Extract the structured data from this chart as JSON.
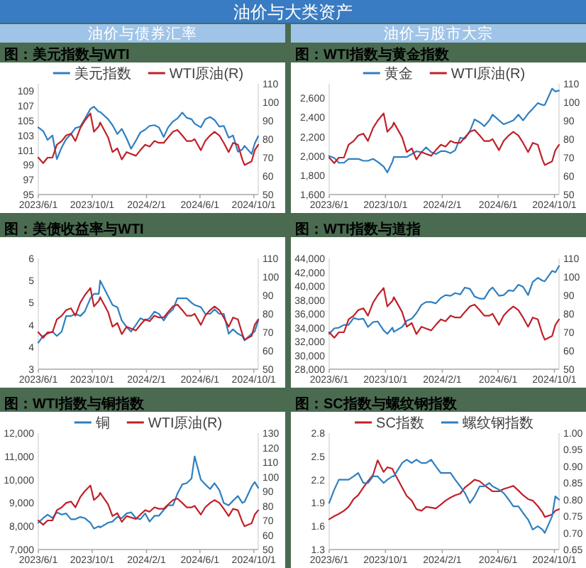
{
  "chart_data": [
    {
      "type": "line",
      "title": "图：美元指数与WTI",
      "subtitle": "油价与债券汇率",
      "annotations": [
        "油价与大类资产"
      ],
      "legend": "top",
      "x": [
        "2023-06-01",
        "2023-06-12",
        "2023-06-22",
        "2023-07-03",
        "2023-07-13",
        "2023-07-24",
        "2023-08-03",
        "2023-08-14",
        "2023-08-24",
        "2023-09-04",
        "2023-09-14",
        "2023-09-27",
        "2023-10-05",
        "2023-10-16",
        "2023-10-19",
        "2023-11-06",
        "2023-11-16",
        "2023-11-27",
        "2023-12-07",
        "2023-12-18",
        "2023-12-28",
        "2024-01-08",
        "2024-01-18",
        "2024-01-29",
        "2024-02-08",
        "2024-02-19",
        "2024-02-29",
        "2024-03-11",
        "2024-03-21",
        "2024-04-01",
        "2024-04-11",
        "2024-04-22",
        "2024-05-02",
        "2024-05-13",
        "2024-05-20",
        "2024-06-03",
        "2024-06-13",
        "2024-06-24",
        "2024-07-04",
        "2024-07-15",
        "2024-07-25",
        "2024-08-05",
        "2024-08-15",
        "2024-08-26",
        "2024-09-05",
        "2024-09-10",
        "2024-09-26",
        "2024-10-03",
        "2024-10-11"
      ],
      "series": [
        {
          "name": "美元指数",
          "color": "#2e7fc1",
          "values": [
            104.1,
            103.6,
            102.4,
            103.0,
            99.8,
            101.4,
            102.5,
            103.2,
            104.0,
            104.2,
            105.2,
            106.6,
            106.9,
            106.2,
            106.2,
            105.2,
            104.4,
            103.2,
            103.9,
            102.6,
            101.2,
            102.3,
            103.4,
            103.8,
            104.3,
            104.4,
            104.1,
            102.8,
            104.1,
            104.9,
            105.3,
            106.1,
            105.4,
            105.2,
            104.6,
            104.1,
            105.2,
            105.5,
            105.1,
            104.2,
            104.3,
            102.7,
            103.0,
            100.8,
            101.1,
            101.6,
            100.5,
            101.9,
            102.9
          ]
        },
        {
          "name": "WTI原油(R)",
          "color": "#c0202a",
          "axis": "y2",
          "values": [
            70,
            67,
            70,
            70,
            77,
            79,
            82,
            83,
            79,
            86,
            90,
            94,
            84,
            87,
            89,
            81,
            73,
            75,
            69,
            73,
            72,
            71,
            74,
            77,
            76,
            79,
            78,
            78,
            81,
            84,
            85,
            82,
            79,
            79,
            80,
            74,
            79,
            82,
            84,
            82,
            78,
            73,
            78,
            77,
            69,
            66,
            68,
            74,
            77
          ]
        }
      ],
      "xlim": [
        "2023-06-01",
        "2024-10-11"
      ],
      "xticks": [
        {
          "value": "2023-06-01",
          "label": "2023/6/1"
        },
        {
          "value": "2023-10-01",
          "label": "2023/10/1"
        },
        {
          "value": "2024-02-01",
          "label": "2024/2/1"
        },
        {
          "value": "2024-06-01",
          "label": "2024/6/1"
        },
        {
          "value": "2024-10-01",
          "label": "2024/10/1"
        }
      ],
      "ylim": [
        95,
        110
      ],
      "yticks": [
        95,
        97,
        99,
        101,
        103,
        105,
        107,
        109
      ],
      "y2lim": [
        50,
        110
      ],
      "y2ticks": [
        50,
        60,
        70,
        80,
        90,
        100,
        110
      ]
    },
    {
      "type": "line",
      "title": "图：WTI指数与黄金指数",
      "subtitle": "油价与股市大宗",
      "legend": "top",
      "x": [
        "2023-06-01",
        "2023-06-12",
        "2023-06-22",
        "2023-07-03",
        "2023-07-13",
        "2023-07-24",
        "2023-08-03",
        "2023-08-14",
        "2023-08-24",
        "2023-09-04",
        "2023-09-14",
        "2023-09-27",
        "2023-10-05",
        "2023-10-16",
        "2023-10-19",
        "2023-11-06",
        "2023-11-16",
        "2023-11-27",
        "2023-12-07",
        "2023-12-18",
        "2023-12-28",
        "2024-01-08",
        "2024-01-18",
        "2024-01-29",
        "2024-02-08",
        "2024-02-19",
        "2024-02-29",
        "2024-03-11",
        "2024-03-21",
        "2024-04-01",
        "2024-04-11",
        "2024-04-22",
        "2024-05-02",
        "2024-05-13",
        "2024-05-20",
        "2024-06-03",
        "2024-06-13",
        "2024-06-24",
        "2024-07-04",
        "2024-07-15",
        "2024-07-25",
        "2024-08-05",
        "2024-08-15",
        "2024-08-26",
        "2024-09-05",
        "2024-09-10",
        "2024-09-26",
        "2024-10-03",
        "2024-10-11"
      ],
      "series": [
        {
          "name": "黄金",
          "color": "#2e7fc1",
          "values": [
            2000,
            1980,
            1930,
            1930,
            1970,
            1970,
            1970,
            1950,
            1950,
            1970,
            1940,
            1890,
            1830,
            1940,
            1990,
            1990,
            1990,
            2020,
            2050,
            2040,
            2090,
            2040,
            2020,
            2050,
            2050,
            2030,
            2060,
            2190,
            2180,
            2260,
            2380,
            2350,
            2310,
            2370,
            2430,
            2370,
            2330,
            2350,
            2370,
            2430,
            2370,
            2440,
            2490,
            2550,
            2530,
            2530,
            2700,
            2670,
            2680
          ]
        },
        {
          "name": "WTI原油(R)",
          "color": "#c0202a",
          "axis": "y2",
          "values": [
            70,
            67,
            70,
            70,
            77,
            79,
            82,
            83,
            79,
            86,
            90,
            94,
            84,
            87,
            89,
            81,
            73,
            75,
            69,
            73,
            72,
            71,
            74,
            77,
            76,
            79,
            78,
            78,
            81,
            84,
            85,
            82,
            79,
            79,
            80,
            74,
            79,
            82,
            84,
            82,
            78,
            73,
            78,
            77,
            69,
            66,
            68,
            74,
            77
          ]
        }
      ],
      "xlim": [
        "2023-06-01",
        "2024-10-11"
      ],
      "xticks": [
        {
          "value": "2023-06-01",
          "label": "2023/6/1"
        },
        {
          "value": "2023-10-01",
          "label": "2023/10/1"
        },
        {
          "value": "2024-02-01",
          "label": "2024/2/1"
        },
        {
          "value": "2024-06-01",
          "label": "2024/6/1"
        },
        {
          "value": "2024-10-01",
          "label": "2024/10/1"
        }
      ],
      "ylim": [
        1600,
        2750
      ],
      "yticks": [
        {
          "value": 1600,
          "label": "1,600"
        },
        {
          "value": 1800,
          "label": "1,800"
        },
        {
          "value": 2000,
          "label": "2,000"
        },
        {
          "value": 2200,
          "label": "2,200"
        },
        {
          "value": 2400,
          "label": "2,400"
        },
        {
          "value": 2600,
          "label": "2,600"
        }
      ],
      "y2lim": [
        50,
        110
      ],
      "y2ticks": [
        50,
        60,
        70,
        80,
        90,
        100,
        110
      ]
    },
    {
      "type": "line",
      "title": "图：美债收益率与WTI",
      "x": [
        "2023-06-01",
        "2023-06-12",
        "2023-06-22",
        "2023-07-03",
        "2023-07-13",
        "2023-07-24",
        "2023-08-03",
        "2023-08-14",
        "2023-08-24",
        "2023-09-04",
        "2023-09-14",
        "2023-09-27",
        "2023-10-05",
        "2023-10-16",
        "2023-10-19",
        "2023-11-06",
        "2023-11-16",
        "2023-11-27",
        "2023-12-07",
        "2023-12-18",
        "2023-12-28",
        "2024-01-08",
        "2024-01-18",
        "2024-01-29",
        "2024-02-08",
        "2024-02-19",
        "2024-02-29",
        "2024-03-11",
        "2024-03-21",
        "2024-04-01",
        "2024-04-11",
        "2024-04-22",
        "2024-05-02",
        "2024-05-13",
        "2024-05-20",
        "2024-06-03",
        "2024-06-13",
        "2024-06-24",
        "2024-07-04",
        "2024-07-15",
        "2024-07-25",
        "2024-08-05",
        "2024-08-15",
        "2024-08-26",
        "2024-09-05",
        "2024-09-10",
        "2024-09-26",
        "2024-10-03",
        "2024-10-11"
      ],
      "series": [
        {
          "color": "#2e7fc1",
          "values": [
            3.6,
            3.75,
            3.8,
            3.85,
            3.75,
            3.85,
            4.2,
            4.2,
            4.25,
            4.2,
            4.3,
            4.6,
            4.7,
            4.7,
            5.0,
            4.65,
            4.45,
            4.4,
            4.1,
            3.95,
            3.85,
            4.0,
            4.15,
            4.1,
            4.15,
            4.3,
            4.25,
            4.1,
            4.25,
            4.35,
            4.6,
            4.6,
            4.6,
            4.5,
            4.45,
            4.4,
            4.25,
            4.25,
            4.35,
            4.25,
            4.25,
            3.8,
            3.9,
            3.8,
            3.75,
            3.65,
            3.8,
            3.85,
            4.1
          ]
        },
        {
          "color": "#c0202a",
          "axis": "y2",
          "values": [
            70,
            67,
            70,
            70,
            77,
            79,
            82,
            83,
            79,
            86,
            90,
            94,
            84,
            87,
            89,
            81,
            73,
            75,
            69,
            73,
            72,
            71,
            74,
            77,
            76,
            79,
            78,
            78,
            81,
            84,
            85,
            82,
            79,
            79,
            80,
            74,
            79,
            82,
            84,
            82,
            78,
            73,
            78,
            77,
            69,
            66,
            68,
            74,
            77
          ]
        }
      ],
      "xlim": [
        "2023-06-01",
        "2024-10-11"
      ],
      "xticks": [
        {
          "value": "2023-06-01",
          "label": "2023/6/1"
        },
        {
          "value": "2023-10-01",
          "label": "2023/10/1"
        },
        {
          "value": "2024-02-01",
          "label": "2024/2/1"
        },
        {
          "value": "2024-06-01",
          "label": "2024/6/1"
        },
        {
          "value": "2024-10-01",
          "label": "2024/10/1"
        }
      ],
      "ylim": [
        3,
        5.5
      ],
      "yticks": [
        3,
        {
          "value": 3.5,
          "label": "4"
        },
        4,
        {
          "value": 4.5,
          "label": "5"
        },
        5,
        {
          "value": 5.5,
          "label": "6"
        }
      ],
      "y2lim": [
        50,
        110
      ],
      "y2ticks": [
        50,
        60,
        70,
        80,
        90,
        100,
        110
      ]
    },
    {
      "type": "line",
      "title": "图：WTI指数与道指",
      "x": [
        "2023-06-01",
        "2023-06-12",
        "2023-06-22",
        "2023-07-03",
        "2023-07-13",
        "2023-07-24",
        "2023-08-03",
        "2023-08-14",
        "2023-08-24",
        "2023-09-04",
        "2023-09-14",
        "2023-09-27",
        "2023-10-05",
        "2023-10-16",
        "2023-10-19",
        "2023-11-06",
        "2023-11-16",
        "2023-11-27",
        "2023-12-07",
        "2023-12-18",
        "2023-12-28",
        "2024-01-08",
        "2024-01-18",
        "2024-01-29",
        "2024-02-08",
        "2024-02-19",
        "2024-02-29",
        "2024-03-11",
        "2024-03-21",
        "2024-04-01",
        "2024-04-11",
        "2024-04-22",
        "2024-05-02",
        "2024-05-13",
        "2024-05-20",
        "2024-06-03",
        "2024-06-13",
        "2024-06-24",
        "2024-07-04",
        "2024-07-15",
        "2024-07-25",
        "2024-08-05",
        "2024-08-15",
        "2024-08-26",
        "2024-09-05",
        "2024-09-10",
        "2024-09-26",
        "2024-10-03",
        "2024-10-11"
      ],
      "series": [
        {
          "color": "#2e7fc1",
          "values": [
            33100,
            33900,
            34000,
            34400,
            34400,
            35400,
            35200,
            35300,
            34100,
            34800,
            34900,
            33600,
            33100,
            34000,
            33400,
            34100,
            35000,
            35300,
            36100,
            37300,
            37700,
            37700,
            37500,
            38300,
            38700,
            38600,
            39000,
            38800,
            39800,
            39600,
            38500,
            38200,
            38200,
            39400,
            39800,
            38600,
            38700,
            39400,
            39300,
            40200,
            39900,
            38700,
            40600,
            41200,
            40800,
            40700,
            42200,
            42000,
            42900
          ]
        },
        {
          "color": "#c0202a",
          "axis": "y2",
          "values": [
            70,
            67,
            70,
            70,
            77,
            79,
            82,
            83,
            79,
            86,
            90,
            94,
            84,
            87,
            89,
            81,
            73,
            75,
            69,
            73,
            72,
            71,
            74,
            77,
            76,
            79,
            78,
            78,
            81,
            84,
            85,
            82,
            79,
            79,
            80,
            74,
            79,
            82,
            84,
            82,
            78,
            73,
            78,
            77,
            69,
            66,
            68,
            74,
            77
          ]
        }
      ],
      "xlim": [
        "2023-06-01",
        "2024-10-11"
      ],
      "xticks": [
        {
          "value": "2023-06-01",
          "label": "2023/6/1"
        },
        {
          "value": "2023-10-01",
          "label": "2023/10/1"
        },
        {
          "value": "2024-02-01",
          "label": "2024/2/1"
        },
        {
          "value": "2024-06-01",
          "label": "2024/6/1"
        },
        {
          "value": "2024-10-01",
          "label": "2024/10/1"
        }
      ],
      "ylim": [
        28000,
        44000
      ],
      "yticks": [
        {
          "value": 28000,
          "label": "28,000"
        },
        {
          "value": 30000,
          "label": "30,000"
        },
        {
          "value": 32000,
          "label": "32,000"
        },
        {
          "value": 34000,
          "label": "34,000"
        },
        {
          "value": 36000,
          "label": "36,000"
        },
        {
          "value": 38000,
          "label": "38,000"
        },
        {
          "value": 40000,
          "label": "40,000"
        },
        {
          "value": 42000,
          "label": "42,000"
        },
        {
          "value": 44000,
          "label": "44,000"
        }
      ],
      "y2lim": [
        50,
        110
      ],
      "y2ticks": [
        50,
        60,
        70,
        80,
        90,
        100,
        110
      ]
    },
    {
      "type": "line",
      "title": "图：WTI指数与铜指数",
      "legend": "top",
      "x": [
        "2023-06-01",
        "2023-06-12",
        "2023-06-22",
        "2023-07-03",
        "2023-07-13",
        "2023-07-24",
        "2023-08-03",
        "2023-08-14",
        "2023-08-24",
        "2023-09-04",
        "2023-09-14",
        "2023-09-27",
        "2023-10-05",
        "2023-10-16",
        "2023-10-19",
        "2023-11-06",
        "2023-11-16",
        "2023-11-27",
        "2023-12-07",
        "2023-12-18",
        "2023-12-28",
        "2024-01-08",
        "2024-01-18",
        "2024-01-29",
        "2024-02-08",
        "2024-02-19",
        "2024-02-29",
        "2024-03-11",
        "2024-03-21",
        "2024-04-01",
        "2024-04-11",
        "2024-04-22",
        "2024-05-02",
        "2024-05-13",
        "2024-05-20",
        "2024-06-03",
        "2024-06-13",
        "2024-06-24",
        "2024-07-04",
        "2024-07-15",
        "2024-07-25",
        "2024-08-05",
        "2024-08-15",
        "2024-08-26",
        "2024-09-05",
        "2024-09-10",
        "2024-09-26",
        "2024-10-03",
        "2024-10-11"
      ],
      "series": [
        {
          "name": "铜",
          "color": "#2e7fc1",
          "values": [
            8150,
            8350,
            8500,
            8350,
            8600,
            8500,
            8550,
            8300,
            8300,
            8400,
            8350,
            8150,
            7900,
            8000,
            7950,
            8150,
            8200,
            8400,
            8350,
            8550,
            8600,
            8350,
            8300,
            8550,
            8200,
            8450,
            8450,
            8700,
            8900,
            8900,
            9400,
            9800,
            9850,
            10050,
            11000,
            10000,
            9800,
            9600,
            9850,
            9550,
            9000,
            8900,
            9100,
            9300,
            9000,
            9050,
            9700,
            9900,
            9650
          ]
        },
        {
          "name": "WTI原油(R)",
          "color": "#c0202a",
          "axis": "y2",
          "values": [
            70,
            67,
            70,
            70,
            77,
            79,
            82,
            83,
            79,
            86,
            90,
            94,
            84,
            87,
            89,
            81,
            73,
            75,
            69,
            73,
            72,
            71,
            74,
            77,
            76,
            79,
            78,
            78,
            81,
            84,
            85,
            82,
            79,
            79,
            80,
            74,
            79,
            82,
            84,
            82,
            78,
            73,
            78,
            77,
            69,
            66,
            68,
            74,
            77
          ]
        }
      ],
      "xlim": [
        "2023-06-01",
        "2024-10-11"
      ],
      "xticks": [
        {
          "value": "2023-06-01",
          "label": "2023/6/1"
        },
        {
          "value": "2023-10-01",
          "label": "2023/10/1"
        },
        {
          "value": "2024-02-01",
          "label": "2024/2/1"
        },
        {
          "value": "2024-06-01",
          "label": "2024/6/1"
        },
        {
          "value": "2024-10-01",
          "label": "2024/10/1"
        }
      ],
      "ylim": [
        7000,
        12000
      ],
      "yticks": [
        {
          "value": 7000,
          "label": "7,000"
        },
        {
          "value": 8000,
          "label": "8,000"
        },
        {
          "value": 9000,
          "label": "9,000"
        },
        {
          "value": 10000,
          "label": "10,000"
        },
        {
          "value": 11000,
          "label": "11,000"
        },
        {
          "value": 12000,
          "label": "12,000"
        }
      ],
      "y2lim": [
        50,
        130
      ],
      "y2ticks": [
        50,
        60,
        70,
        80,
        90,
        100,
        110,
        120,
        130
      ]
    },
    {
      "type": "line",
      "title": "图：SC指数与螺纹钢指数",
      "legend": "top",
      "x": [
        "2023-06-01",
        "2023-06-12",
        "2023-06-22",
        "2023-07-03",
        "2023-07-13",
        "2023-07-24",
        "2023-08-03",
        "2023-08-14",
        "2023-08-24",
        "2023-09-04",
        "2023-09-14",
        "2023-09-27",
        "2023-10-05",
        "2023-10-16",
        "2023-10-19",
        "2023-11-06",
        "2023-11-16",
        "2023-11-27",
        "2023-12-07",
        "2023-12-18",
        "2023-12-28",
        "2024-01-08",
        "2024-01-18",
        "2024-01-29",
        "2024-02-08",
        "2024-02-19",
        "2024-02-29",
        "2024-03-11",
        "2024-03-21",
        "2024-04-01",
        "2024-04-11",
        "2024-04-22",
        "2024-05-02",
        "2024-05-13",
        "2024-05-20",
        "2024-06-03",
        "2024-06-13",
        "2024-06-24",
        "2024-07-04",
        "2024-07-15",
        "2024-07-25",
        "2024-08-05",
        "2024-08-15",
        "2024-08-26",
        "2024-09-05",
        "2024-09-10",
        "2024-09-26",
        "2024-10-03",
        "2024-10-11"
      ],
      "series": [
        {
          "name": "SC指数",
          "color": "#c0202a",
          "values": [
            1.69,
            1.73,
            1.76,
            1.8,
            1.85,
            1.95,
            2.0,
            2.1,
            2.18,
            2.26,
            2.45,
            2.3,
            2.36,
            2.34,
            2.3,
            2.1,
            1.99,
            1.93,
            1.82,
            1.8,
            1.85,
            1.84,
            1.83,
            1.88,
            1.93,
            1.97,
            2.0,
            2.02,
            2.1,
            2.15,
            2.2,
            2.18,
            2.13,
            2.08,
            2.05,
            2.05,
            2.08,
            2.1,
            2.12,
            2.06,
            2.0,
            1.95,
            1.93,
            1.86,
            1.78,
            1.72,
            1.75,
            1.8,
            1.82
          ]
        },
        {
          "name": "螺纹钢指数",
          "color": "#2e7fc1",
          "axis": "y2",
          "values": [
            0.79,
            0.83,
            0.86,
            0.86,
            0.86,
            0.87,
            0.88,
            0.85,
            0.85,
            0.87,
            0.87,
            0.85,
            0.86,
            0.87,
            0.87,
            0.91,
            0.92,
            0.91,
            0.92,
            0.91,
            0.91,
            0.92,
            0.9,
            0.88,
            0.88,
            0.88,
            0.86,
            0.84,
            0.82,
            0.79,
            0.81,
            0.84,
            0.84,
            0.85,
            0.84,
            0.83,
            0.82,
            0.8,
            0.78,
            0.78,
            0.76,
            0.74,
            0.71,
            0.72,
            0.71,
            0.7,
            0.75,
            0.81,
            0.8
          ]
        }
      ],
      "xlim": [
        "2023-06-01",
        "2024-10-11"
      ],
      "xticks": [
        {
          "value": "2023-06-01",
          "label": "2023/6/1"
        },
        {
          "value": "2023-10-01",
          "label": "2023/10/1"
        },
        {
          "value": "2024-02-01",
          "label": "2024/2/1"
        },
        {
          "value": "2024-06-01",
          "label": "2024/6/1"
        },
        {
          "value": "2024-10-01",
          "label": "2024/10/1"
        }
      ],
      "ylim": [
        1.3,
        2.8
      ],
      "yticks": [
        1.3,
        1.6,
        1.9,
        2.2,
        2.5,
        2.8
      ],
      "y2lim": [
        0.65,
        1.0
      ],
      "y2ticks": [
        0.65,
        {
          "value": 0.7,
          "label": "0.70"
        },
        0.75,
        {
          "value": 0.8,
          "label": "0.80"
        },
        0.85,
        {
          "value": 0.9,
          "label": "0.90"
        },
        0.95,
        {
          "value": 1.0,
          "label": "1.00"
        }
      ]
    }
  ]
}
